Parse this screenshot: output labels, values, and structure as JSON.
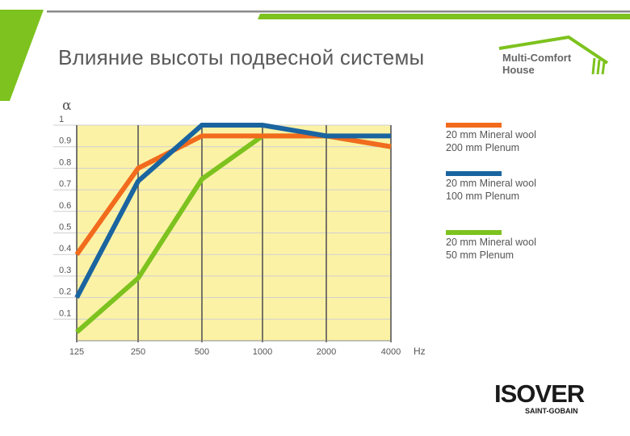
{
  "slide": {
    "title": "Влияние высоты подвесной системы",
    "colors": {
      "accent_green": "#7dc21e",
      "chart_bg": "#fcf2a6"
    }
  },
  "logos": {
    "multi_comfort": {
      "line1": "Multi-Comfort",
      "line2": "House",
      "icon": "roof-icon"
    },
    "isover": {
      "word": "ISOVER",
      "sub": "SAINT-GOBAIN"
    }
  },
  "chart_data": {
    "type": "line",
    "title": "",
    "ylabel": "α",
    "xlabel": "Hz",
    "ylim": [
      0,
      1
    ],
    "grid": true,
    "legend_placement": "right",
    "y_ticks": [
      "0.1",
      "0.2",
      "0.3",
      "0.4",
      "0.5",
      "0.6",
      "0.7",
      "0.8",
      "0.9",
      "1"
    ],
    "x": [
      "125",
      "250",
      "500",
      "1000",
      "2000",
      "4000"
    ],
    "series": [
      {
        "name": "20 mm Mineral wool 200 mm Plenum",
        "line1": "20 mm Mineral wool",
        "line2": "200 mm Plenum",
        "color": "#f26b1d",
        "values": [
          0.4,
          0.8,
          0.95,
          0.95,
          0.95,
          0.9
        ]
      },
      {
        "name": "20 mm Mineral wool 100 mm Plenum",
        "line1": "20 mm Mineral wool",
        "line2": "100 mm Plenum",
        "color": "#1a64a0",
        "values": [
          0.2,
          0.74,
          1.0,
          1.0,
          0.95,
          0.95
        ]
      },
      {
        "name": "20 mm Mineral wool 50 mm Plenum",
        "line1": "20 mm Mineral wool",
        "line2": "50 mm Plenum",
        "color": "#7dc21e",
        "values": [
          0.04,
          0.29,
          0.75,
          0.95,
          0.95,
          0.9
        ]
      }
    ]
  }
}
